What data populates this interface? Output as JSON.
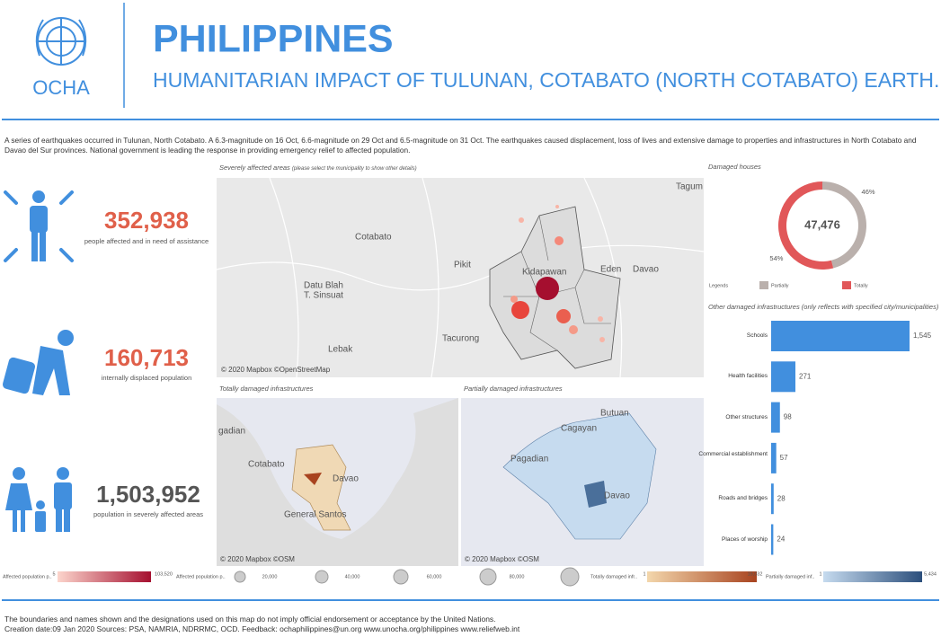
{
  "header": {
    "org": "OCHA",
    "title": "PHILIPPINES",
    "subtitle": "HUMANITARIAN IMPACT OF TULUNAN, COTABATO (NORTH COTABATO) EARTH.."
  },
  "intro": "A series of earthquakes occurred in Tulunan, North Cotabato. A 6.3-magnitude on 16 Oct, 6.6-magnitude on 29 Oct and 6.5-magnitude on 31 Oct. The earthquakes caused displacement, loss of lives and extensive damage to properties and infrastructures in North Cotabato and Davao del Sur provinces. National government is leading the response in providing emergency relief to affected population.",
  "stats": [
    {
      "value": "352,938",
      "label": "people affected and in need of assistance"
    },
    {
      "value": "160,713",
      "label": "internally displaced population"
    },
    {
      "value": "1,503,952",
      "label": "population in severely affected areas"
    }
  ],
  "maps": [
    {
      "title": "Severely affected areas",
      "note": "(please select the municipality to show other details)",
      "places": [
        "Tagum",
        "Cotabato",
        "Davao",
        "Datu Blah",
        "T. Sinsuat",
        "Pikit",
        "Eden",
        "Tacurong",
        "Lebak",
        "Kidapawan"
      ],
      "attribution": "© 2020 Mapbox ©OpenStreetMap"
    },
    {
      "title": "Totally damaged infrastructures",
      "places": [
        "gadian",
        "Cotabato",
        "Davao",
        "General Santos"
      ],
      "attribution": "© 2020 Mapbox ©OSM"
    },
    {
      "title": "Partially damaged infrastructures",
      "places": [
        "Butuan",
        "Cagayan",
        "Pagadian",
        "Davao"
      ],
      "attribution": "© 2020 Mapbox ©OSM"
    }
  ],
  "legends": [
    {
      "title": "Affected population p..",
      "labels": [
        "5",
        "103,520"
      ]
    },
    {
      "title": "Affected population p..",
      "labels": [
        "20,000",
        "40,000",
        "60,000",
        "80,000"
      ]
    },
    {
      "title": "Totally damaged infr..",
      "labels": [
        "1",
        "19,032"
      ]
    },
    {
      "title": "Partially damaged inf..",
      "labels": [
        "1",
        "5,434"
      ]
    }
  ],
  "chart_data": [
    {
      "type": "donut",
      "title": "Damaged houses",
      "center_label": "47,476",
      "legend_title": "Legends",
      "categories": [
        "Partially",
        "Totally"
      ],
      "values": [
        46,
        54
      ],
      "value_labels": [
        "46%",
        "54%"
      ],
      "colors": [
        "#bab0ac",
        "#e15759"
      ]
    },
    {
      "type": "hbar",
      "title": "Other damaged infrastructures (only reflects with specified city/municipalities)",
      "categories": [
        "Schools",
        "Health facilities",
        "Other structures",
        "Commercial establishment",
        "Roads and bridges",
        "Places of worship"
      ],
      "values": [
        1545,
        271,
        98,
        57,
        28,
        24
      ],
      "value_labels": [
        "1,545",
        "271",
        "98",
        "57",
        "28",
        "24"
      ],
      "color": "#418fde"
    }
  ],
  "footer": [
    "The boundaries and names shown and the designations used on this map do not imply official endorsement or acceptance by the United Nations.",
    "Creation date:09 Jan 2020 Sources: PSA, NAMRIA, NDRRMC, OCD. Feedback: ochaphilippines@un.org www.unocha.org/philippines www.reliefweb.int"
  ]
}
